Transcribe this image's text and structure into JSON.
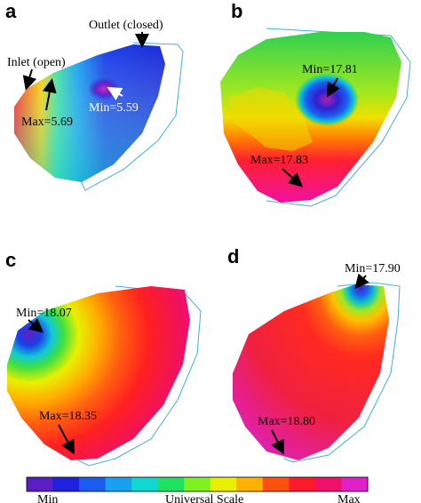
{
  "panels": [
    {
      "letter": "a",
      "labels": {
        "outlet": "Outlet (closed)",
        "inlet": "Inlet (open)",
        "max": "Max=5.69",
        "min": "Min=5.59"
      }
    },
    {
      "letter": "b",
      "labels": {
        "min": "Min=17.81",
        "max": "Max=17.83"
      }
    },
    {
      "letter": "c",
      "labels": {
        "min": "Min=18.07",
        "max": "Max=18.35"
      }
    },
    {
      "letter": "d",
      "labels": {
        "min": "Min=17.90",
        "max": "Max=18.80"
      }
    }
  ],
  "colorbar": {
    "min_label": "Min",
    "title": "Universal Scale",
    "max_label": "Max",
    "colors": [
      "#5a1fc4",
      "#2020e0",
      "#1a5cf0",
      "#1aa0f0",
      "#10d8d0",
      "#20e060",
      "#80f020",
      "#e8f000",
      "#ffb000",
      "#ff5010",
      "#ff1a2a",
      "#f0106a",
      "#e020c8"
    ]
  }
}
